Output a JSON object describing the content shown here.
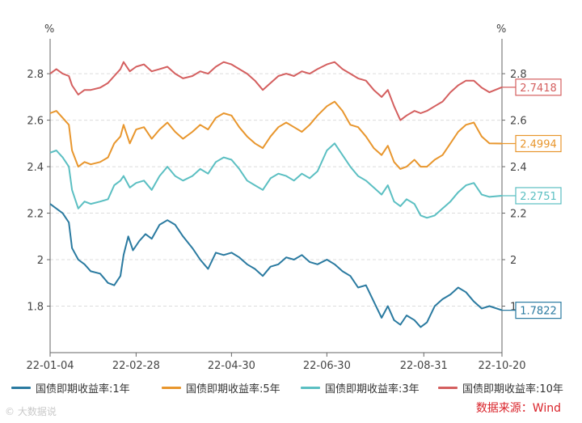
{
  "chart_data": {
    "type": "line",
    "title": "",
    "y_unit_left": "%",
    "y_unit_right": "%",
    "ylim": [
      1.6,
      2.95
    ],
    "y_ticks": [
      1.8,
      2,
      2.2,
      2.4,
      2.6,
      2.8
    ],
    "y_tick_labels": [
      "1.8",
      "2",
      "2.2",
      "2.4",
      "2.6",
      "2.8"
    ],
    "x_ticks": [
      {
        "date": "2022-01-04",
        "label": "22-01-04"
      },
      {
        "date": "2022-02-28",
        "label": "22-02-28"
      },
      {
        "date": "2022-04-30",
        "label": "22-04-30"
      },
      {
        "date": "2022-06-30",
        "label": "22-06-30"
      },
      {
        "date": "2022-08-31",
        "label": "22-08-31"
      },
      {
        "date": "2022-10-20",
        "label": "22-10-20"
      }
    ],
    "x_start": "2022-01-04",
    "x_end": "2022-10-20",
    "grid": "horizontal dashed",
    "legend_position": "bottom",
    "series": [
      {
        "name": "国债即期收益率:1年",
        "color": "#2a7aa0",
        "end_label": "1.7822",
        "points": [
          [
            "2022-01-04",
            2.24
          ],
          [
            "2022-01-08",
            2.22
          ],
          [
            "2022-01-12",
            2.2
          ],
          [
            "2022-01-16",
            2.16
          ],
          [
            "2022-01-18",
            2.05
          ],
          [
            "2022-01-22",
            2.0
          ],
          [
            "2022-01-26",
            1.98
          ],
          [
            "2022-01-30",
            1.95
          ],
          [
            "2022-02-05",
            1.94
          ],
          [
            "2022-02-10",
            1.9
          ],
          [
            "2022-02-14",
            1.89
          ],
          [
            "2022-02-18",
            1.93
          ],
          [
            "2022-02-20",
            2.02
          ],
          [
            "2022-02-23",
            2.1
          ],
          [
            "2022-02-26",
            2.04
          ],
          [
            "2022-03-02",
            2.08
          ],
          [
            "2022-03-06",
            2.11
          ],
          [
            "2022-03-10",
            2.09
          ],
          [
            "2022-03-15",
            2.15
          ],
          [
            "2022-03-20",
            2.17
          ],
          [
            "2022-03-25",
            2.15
          ],
          [
            "2022-03-30",
            2.1
          ],
          [
            "2022-04-05",
            2.05
          ],
          [
            "2022-04-10",
            2.0
          ],
          [
            "2022-04-15",
            1.96
          ],
          [
            "2022-04-20",
            2.03
          ],
          [
            "2022-04-25",
            2.02
          ],
          [
            "2022-04-30",
            2.03
          ],
          [
            "2022-05-05",
            2.01
          ],
          [
            "2022-05-10",
            1.98
          ],
          [
            "2022-05-15",
            1.96
          ],
          [
            "2022-05-20",
            1.93
          ],
          [
            "2022-05-25",
            1.97
          ],
          [
            "2022-05-30",
            1.98
          ],
          [
            "2022-06-04",
            2.01
          ],
          [
            "2022-06-09",
            2.0
          ],
          [
            "2022-06-14",
            2.02
          ],
          [
            "2022-06-19",
            1.99
          ],
          [
            "2022-06-24",
            1.98
          ],
          [
            "2022-06-30",
            2.0
          ],
          [
            "2022-07-05",
            1.98
          ],
          [
            "2022-07-10",
            1.95
          ],
          [
            "2022-07-15",
            1.93
          ],
          [
            "2022-07-20",
            1.88
          ],
          [
            "2022-07-25",
            1.89
          ],
          [
            "2022-07-30",
            1.82
          ],
          [
            "2022-08-04",
            1.75
          ],
          [
            "2022-08-08",
            1.8
          ],
          [
            "2022-08-12",
            1.74
          ],
          [
            "2022-08-16",
            1.72
          ],
          [
            "2022-08-20",
            1.76
          ],
          [
            "2022-08-25",
            1.74
          ],
          [
            "2022-08-29",
            1.71
          ],
          [
            "2022-09-02",
            1.73
          ],
          [
            "2022-09-07",
            1.8
          ],
          [
            "2022-09-12",
            1.83
          ],
          [
            "2022-09-17",
            1.85
          ],
          [
            "2022-09-22",
            1.88
          ],
          [
            "2022-09-27",
            1.86
          ],
          [
            "2022-10-02",
            1.82
          ],
          [
            "2022-10-07",
            1.79
          ],
          [
            "2022-10-12",
            1.8
          ],
          [
            "2022-10-20",
            1.7822
          ]
        ]
      },
      {
        "name": "国债即期收益率:5年",
        "color": "#e8962d",
        "end_label": "2.4994",
        "points": [
          [
            "2022-01-04",
            2.63
          ],
          [
            "2022-01-08",
            2.64
          ],
          [
            "2022-01-12",
            2.61
          ],
          [
            "2022-01-16",
            2.58
          ],
          [
            "2022-01-18",
            2.47
          ],
          [
            "2022-01-22",
            2.4
          ],
          [
            "2022-01-26",
            2.42
          ],
          [
            "2022-01-30",
            2.41
          ],
          [
            "2022-02-05",
            2.42
          ],
          [
            "2022-02-10",
            2.44
          ],
          [
            "2022-02-14",
            2.5
          ],
          [
            "2022-02-18",
            2.53
          ],
          [
            "2022-02-20",
            2.58
          ],
          [
            "2022-02-24",
            2.5
          ],
          [
            "2022-02-28",
            2.56
          ],
          [
            "2022-03-05",
            2.57
          ],
          [
            "2022-03-10",
            2.52
          ],
          [
            "2022-03-15",
            2.56
          ],
          [
            "2022-03-20",
            2.59
          ],
          [
            "2022-03-25",
            2.55
          ],
          [
            "2022-03-30",
            2.52
          ],
          [
            "2022-04-05",
            2.55
          ],
          [
            "2022-04-10",
            2.58
          ],
          [
            "2022-04-15",
            2.56
          ],
          [
            "2022-04-20",
            2.61
          ],
          [
            "2022-04-25",
            2.63
          ],
          [
            "2022-04-30",
            2.62
          ],
          [
            "2022-05-05",
            2.57
          ],
          [
            "2022-05-10",
            2.53
          ],
          [
            "2022-05-15",
            2.5
          ],
          [
            "2022-05-20",
            2.48
          ],
          [
            "2022-05-25",
            2.53
          ],
          [
            "2022-05-30",
            2.57
          ],
          [
            "2022-06-04",
            2.59
          ],
          [
            "2022-06-09",
            2.57
          ],
          [
            "2022-06-14",
            2.55
          ],
          [
            "2022-06-19",
            2.58
          ],
          [
            "2022-06-24",
            2.62
          ],
          [
            "2022-06-30",
            2.66
          ],
          [
            "2022-07-05",
            2.68
          ],
          [
            "2022-07-10",
            2.64
          ],
          [
            "2022-07-15",
            2.58
          ],
          [
            "2022-07-20",
            2.57
          ],
          [
            "2022-07-25",
            2.53
          ],
          [
            "2022-07-30",
            2.48
          ],
          [
            "2022-08-04",
            2.45
          ],
          [
            "2022-08-08",
            2.49
          ],
          [
            "2022-08-12",
            2.42
          ],
          [
            "2022-08-16",
            2.39
          ],
          [
            "2022-08-20",
            2.4
          ],
          [
            "2022-08-25",
            2.43
          ],
          [
            "2022-08-29",
            2.4
          ],
          [
            "2022-09-02",
            2.4
          ],
          [
            "2022-09-07",
            2.43
          ],
          [
            "2022-09-12",
            2.45
          ],
          [
            "2022-09-17",
            2.5
          ],
          [
            "2022-09-22",
            2.55
          ],
          [
            "2022-09-27",
            2.58
          ],
          [
            "2022-10-02",
            2.59
          ],
          [
            "2022-10-07",
            2.53
          ],
          [
            "2022-10-12",
            2.5
          ],
          [
            "2022-10-20",
            2.4994
          ]
        ]
      },
      {
        "name": "国债即期收益率:3年",
        "color": "#5bbfc2",
        "end_label": "2.2751",
        "points": [
          [
            "2022-01-04",
            2.46
          ],
          [
            "2022-01-08",
            2.47
          ],
          [
            "2022-01-12",
            2.44
          ],
          [
            "2022-01-16",
            2.4
          ],
          [
            "2022-01-18",
            2.3
          ],
          [
            "2022-01-22",
            2.22
          ],
          [
            "2022-01-26",
            2.25
          ],
          [
            "2022-01-30",
            2.24
          ],
          [
            "2022-02-05",
            2.25
          ],
          [
            "2022-02-10",
            2.26
          ],
          [
            "2022-02-14",
            2.32
          ],
          [
            "2022-02-18",
            2.34
          ],
          [
            "2022-02-20",
            2.36
          ],
          [
            "2022-02-24",
            2.31
          ],
          [
            "2022-02-28",
            2.33
          ],
          [
            "2022-03-05",
            2.34
          ],
          [
            "2022-03-10",
            2.3
          ],
          [
            "2022-03-15",
            2.36
          ],
          [
            "2022-03-20",
            2.4
          ],
          [
            "2022-03-25",
            2.36
          ],
          [
            "2022-03-30",
            2.34
          ],
          [
            "2022-04-05",
            2.36
          ],
          [
            "2022-04-10",
            2.39
          ],
          [
            "2022-04-15",
            2.37
          ],
          [
            "2022-04-20",
            2.42
          ],
          [
            "2022-04-25",
            2.44
          ],
          [
            "2022-04-30",
            2.43
          ],
          [
            "2022-05-05",
            2.39
          ],
          [
            "2022-05-10",
            2.34
          ],
          [
            "2022-05-15",
            2.32
          ],
          [
            "2022-05-20",
            2.3
          ],
          [
            "2022-05-25",
            2.35
          ],
          [
            "2022-05-30",
            2.37
          ],
          [
            "2022-06-04",
            2.36
          ],
          [
            "2022-06-09",
            2.34
          ],
          [
            "2022-06-14",
            2.37
          ],
          [
            "2022-06-19",
            2.35
          ],
          [
            "2022-06-24",
            2.38
          ],
          [
            "2022-06-30",
            2.47
          ],
          [
            "2022-07-05",
            2.5
          ],
          [
            "2022-07-10",
            2.45
          ],
          [
            "2022-07-15",
            2.4
          ],
          [
            "2022-07-20",
            2.36
          ],
          [
            "2022-07-25",
            2.34
          ],
          [
            "2022-07-30",
            2.31
          ],
          [
            "2022-08-04",
            2.28
          ],
          [
            "2022-08-08",
            2.32
          ],
          [
            "2022-08-12",
            2.25
          ],
          [
            "2022-08-16",
            2.23
          ],
          [
            "2022-08-20",
            2.26
          ],
          [
            "2022-08-25",
            2.24
          ],
          [
            "2022-08-29",
            2.19
          ],
          [
            "2022-09-02",
            2.18
          ],
          [
            "2022-09-07",
            2.19
          ],
          [
            "2022-09-12",
            2.22
          ],
          [
            "2022-09-17",
            2.25
          ],
          [
            "2022-09-22",
            2.29
          ],
          [
            "2022-09-27",
            2.32
          ],
          [
            "2022-10-02",
            2.33
          ],
          [
            "2022-10-07",
            2.28
          ],
          [
            "2022-10-12",
            2.27
          ],
          [
            "2022-10-20",
            2.2751
          ]
        ]
      },
      {
        "name": "国债即期收益率:10年",
        "color": "#d45f5f",
        "end_label": "2.7418",
        "points": [
          [
            "2022-01-04",
            2.8
          ],
          [
            "2022-01-08",
            2.82
          ],
          [
            "2022-01-12",
            2.8
          ],
          [
            "2022-01-16",
            2.79
          ],
          [
            "2022-01-18",
            2.75
          ],
          [
            "2022-01-22",
            2.71
          ],
          [
            "2022-01-26",
            2.73
          ],
          [
            "2022-01-30",
            2.73
          ],
          [
            "2022-02-05",
            2.74
          ],
          [
            "2022-02-10",
            2.76
          ],
          [
            "2022-02-14",
            2.79
          ],
          [
            "2022-02-18",
            2.82
          ],
          [
            "2022-02-20",
            2.85
          ],
          [
            "2022-02-24",
            2.81
          ],
          [
            "2022-02-28",
            2.83
          ],
          [
            "2022-03-05",
            2.84
          ],
          [
            "2022-03-10",
            2.81
          ],
          [
            "2022-03-15",
            2.82
          ],
          [
            "2022-03-20",
            2.83
          ],
          [
            "2022-03-25",
            2.8
          ],
          [
            "2022-03-30",
            2.78
          ],
          [
            "2022-04-05",
            2.79
          ],
          [
            "2022-04-10",
            2.81
          ],
          [
            "2022-04-15",
            2.8
          ],
          [
            "2022-04-20",
            2.83
          ],
          [
            "2022-04-25",
            2.85
          ],
          [
            "2022-04-30",
            2.84
          ],
          [
            "2022-05-05",
            2.82
          ],
          [
            "2022-05-10",
            2.8
          ],
          [
            "2022-05-15",
            2.77
          ],
          [
            "2022-05-20",
            2.73
          ],
          [
            "2022-05-25",
            2.76
          ],
          [
            "2022-05-30",
            2.79
          ],
          [
            "2022-06-04",
            2.8
          ],
          [
            "2022-06-09",
            2.79
          ],
          [
            "2022-06-14",
            2.81
          ],
          [
            "2022-06-19",
            2.8
          ],
          [
            "2022-06-24",
            2.82
          ],
          [
            "2022-06-30",
            2.84
          ],
          [
            "2022-07-05",
            2.85
          ],
          [
            "2022-07-10",
            2.82
          ],
          [
            "2022-07-15",
            2.8
          ],
          [
            "2022-07-20",
            2.78
          ],
          [
            "2022-07-25",
            2.77
          ],
          [
            "2022-07-30",
            2.73
          ],
          [
            "2022-08-04",
            2.7
          ],
          [
            "2022-08-08",
            2.73
          ],
          [
            "2022-08-12",
            2.66
          ],
          [
            "2022-08-16",
            2.6
          ],
          [
            "2022-08-20",
            2.62
          ],
          [
            "2022-08-25",
            2.64
          ],
          [
            "2022-08-29",
            2.63
          ],
          [
            "2022-09-02",
            2.64
          ],
          [
            "2022-09-07",
            2.66
          ],
          [
            "2022-09-12",
            2.68
          ],
          [
            "2022-09-17",
            2.72
          ],
          [
            "2022-09-22",
            2.75
          ],
          [
            "2022-09-27",
            2.77
          ],
          [
            "2022-10-02",
            2.77
          ],
          [
            "2022-10-07",
            2.74
          ],
          [
            "2022-10-12",
            2.72
          ],
          [
            "2022-10-20",
            2.7418
          ]
        ]
      }
    ]
  },
  "legend": [
    {
      "label": "国债即期收益率:1年",
      "color": "#2a7aa0"
    },
    {
      "label": "国债即期收益率:5年",
      "color": "#e8962d"
    },
    {
      "label": "国债即期收益率:3年",
      "color": "#5bbfc2"
    },
    {
      "label": "国债即期收益率:10年",
      "color": "#d45f5f"
    }
  ],
  "source": "数据来源：Wind",
  "watermark": "© 大数据说"
}
